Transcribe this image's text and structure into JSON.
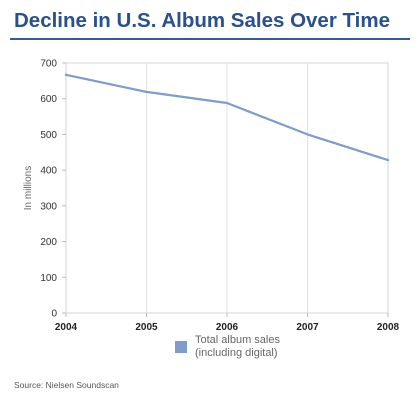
{
  "title": "Decline in U.S. Album Sales Over Time",
  "source": "Source: Nielsen Soundscan",
  "chart_data": {
    "type": "line",
    "title": "Decline in U.S. Album Sales Over Time",
    "xlabel": "",
    "ylabel": "In millions",
    "x": [
      "2004",
      "2005",
      "2006",
      "2007",
      "2008"
    ],
    "ylim": [
      0,
      700
    ],
    "y_ticks": [
      "0",
      "100",
      "200",
      "300",
      "400",
      "500",
      "600",
      "700"
    ],
    "grid": true,
    "legend_position": "bottom",
    "series": [
      {
        "name": "Total album sales (including digital)",
        "values": [
          667,
          619,
          588,
          500,
          428
        ],
        "color": "#7f9dc8"
      }
    ]
  }
}
